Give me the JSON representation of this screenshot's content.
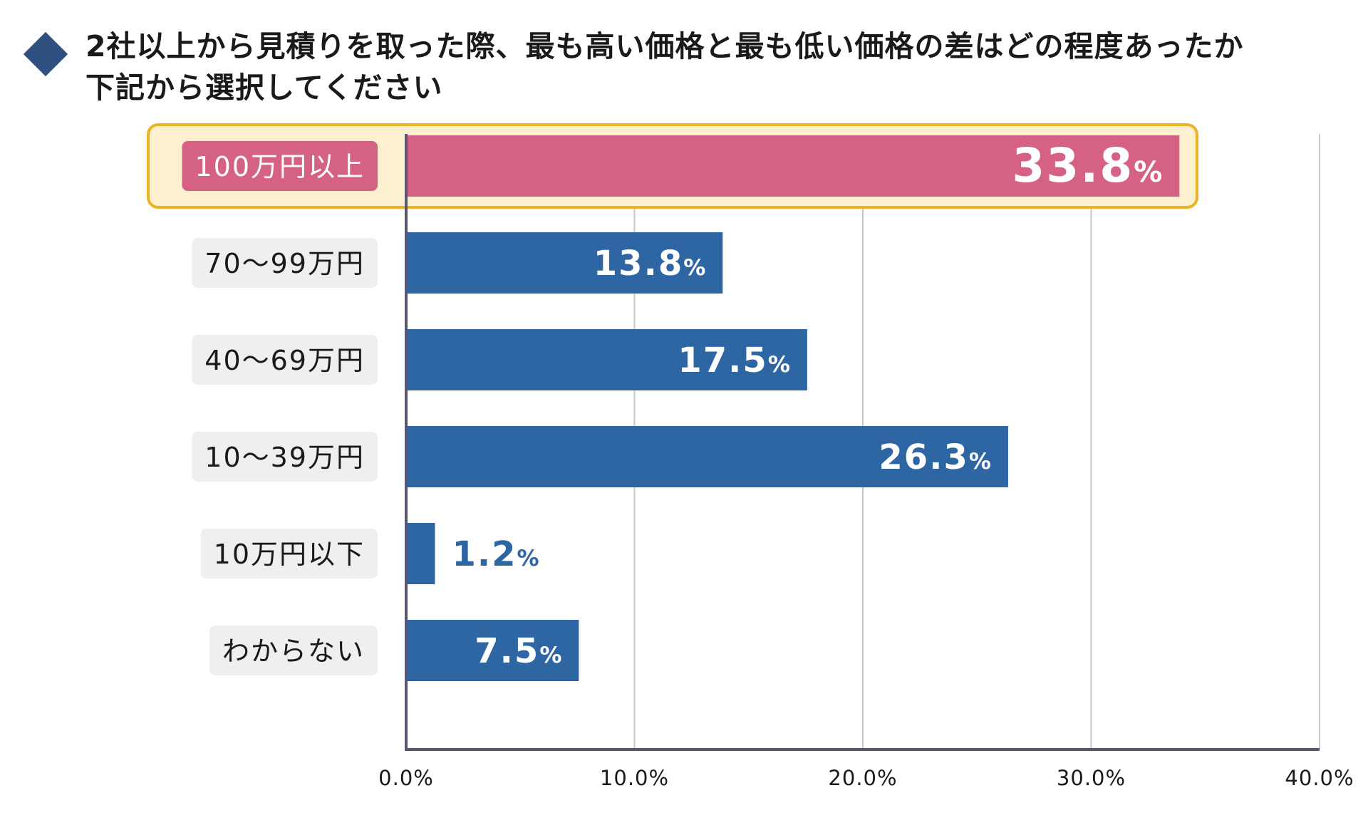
{
  "chart_data": {
    "type": "bar",
    "orientation": "horizontal",
    "title_lines": [
      "2社以上から見積りを取った際、最も高い価格と最も低い価格の差はどの程度あったか",
      "下記から選択してください"
    ],
    "categories": [
      "100万円以上",
      "70〜99万円",
      "40〜69万円",
      "10〜39万円",
      "10万円以下",
      "わからない"
    ],
    "values": [
      33.8,
      13.8,
      17.5,
      26.3,
      1.2,
      7.5
    ],
    "value_labels": [
      "33.8",
      "13.8",
      "17.5",
      "26.3",
      "1.2",
      "7.5"
    ],
    "value_suffix": "%",
    "highlight_index": 0,
    "xlim": [
      0,
      40
    ],
    "xticks": [
      0,
      10,
      20,
      30,
      40
    ],
    "xtick_labels": [
      "0.0%",
      "10.0%",
      "20.0%",
      "30.0%",
      "40.0%"
    ],
    "grid": true,
    "colors": {
      "bar": "#2e65a3",
      "highlight_bar": "#d66283",
      "highlight_fill": "#fdf0d0",
      "highlight_border": "#ecb325",
      "label_bg": "#efefef",
      "grid": "#c8c8c8",
      "axis": "#5a5670",
      "title_marker": "#2f4f80"
    }
  }
}
